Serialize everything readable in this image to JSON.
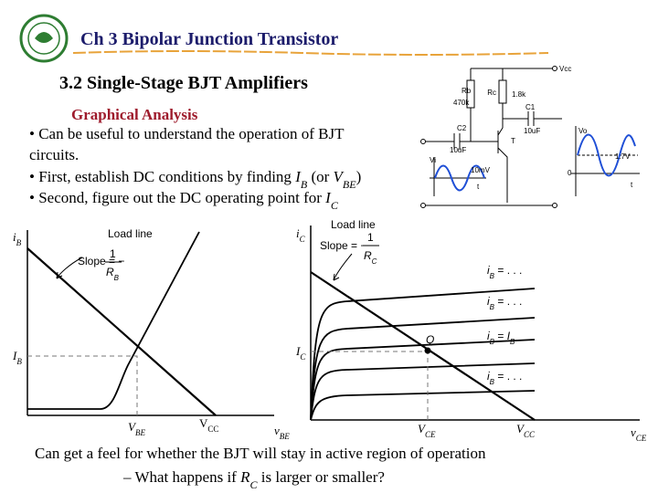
{
  "header": {
    "title": "Ch 3 Bipolar Junction Transistor"
  },
  "section_title": "3.2 Single-Stage BJT Amplifiers",
  "subtitle": "Graphical Analysis",
  "bullets": [
    [
      "• Can be useful to understand the operation of BJT",
      "circuits."
    ],
    [
      "• First, establish DC conditions by finding ",
      "I",
      "B",
      " (or ",
      "V",
      "BE",
      ")"
    ],
    [
      "• Second, figure out the DC operating point for ",
      "I",
      "C"
    ]
  ],
  "circuit": {
    "vcc": "Vcc",
    "rb": "Rb",
    "rb_value": "470k",
    "rc": "Rc",
    "rc_value": "1.8k",
    "c2": "C2",
    "c2_value": "10uF",
    "c1": "C1",
    "c1_value": "10uF",
    "transistor": "T",
    "vi": "Vi",
    "vi_amp": "10mV",
    "t_in": "t",
    "vo": "Vo",
    "vo_level": "1.7V",
    "zero_out": "0",
    "t_out": "t"
  },
  "graph_left": {
    "y_axis": [
      "i",
      "B"
    ],
    "load_line": "Load line",
    "slope": [
      "Slope = −",
      "1",
      "R",
      "B"
    ],
    "y_mark": [
      "I",
      "B"
    ],
    "x_mark": [
      "V",
      "BE"
    ],
    "vcc": [
      "V",
      "CC"
    ],
    "x_axis": [
      "v",
      "BE"
    ]
  },
  "graph_right": {
    "y_axis": [
      "i",
      "C"
    ],
    "load_line": "Load line",
    "slope": [
      "Slope = −",
      "1",
      "R",
      "C"
    ],
    "curves": [
      [
        "i",
        "B",
        " = . . ."
      ],
      [
        "i",
        "B",
        " = . . ."
      ],
      [
        "i",
        "B",
        " = ",
        "I",
        "B"
      ],
      [
        "i",
        "B",
        " = . . ."
      ]
    ],
    "q": "Q",
    "y_mark": [
      "I",
      "C"
    ],
    "x_mark": [
      "V",
      "CE"
    ],
    "vcc": [
      "V",
      "CC"
    ],
    "x_axis": [
      "v",
      "CE"
    ]
  },
  "footer": {
    "line1": "Can get a feel for whether the BJT will stay in active region of operation",
    "line2": [
      "– What happens if ",
      "R",
      "C",
      " is larger or smaller?"
    ]
  }
}
